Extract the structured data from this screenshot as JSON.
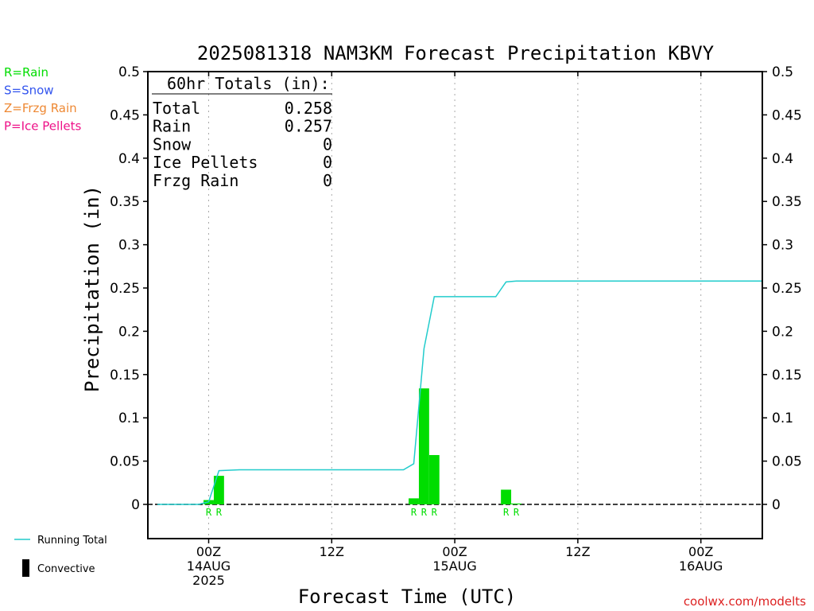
{
  "chart_data": {
    "type": "bar",
    "title": "2025081318 NAM3KM Forecast Precipitation KBVY",
    "xlabel": "Forecast Time (UTC)",
    "ylabel": "Precipitation (in)",
    "ylim": [
      -0.04,
      0.5
    ],
    "y_ticks": [
      0,
      0.05,
      0.1,
      0.15,
      0.2,
      0.25,
      0.3,
      0.35,
      0.4,
      0.45,
      0.5
    ],
    "y_tick_labels": [
      "0",
      "0.05",
      "0.1",
      "0.15",
      "0.2",
      "0.25",
      "0.3",
      "0.35",
      "0.4",
      "0.45",
      "0.5"
    ],
    "x_unit": "hours since 2025-08-13 18Z",
    "xlim": [
      0,
      60
    ],
    "x_ticks": [
      {
        "x": 6,
        "line1": "00Z",
        "line2": "14AUG",
        "line3": "2025"
      },
      {
        "x": 18,
        "line1": "12Z",
        "line2": "",
        "line3": ""
      },
      {
        "x": 30,
        "line1": "00Z",
        "line2": "15AUG",
        "line3": ""
      },
      {
        "x": 42,
        "line1": "12Z",
        "line2": "",
        "line3": ""
      },
      {
        "x": 54,
        "line1": "00Z",
        "line2": "16AUG",
        "line3": ""
      }
    ],
    "grid": "vertical dotted at tick marks",
    "bars": {
      "name": "Rain",
      "color": "#00dd00",
      "x": [
        6,
        7,
        26,
        27,
        28,
        35,
        36
      ],
      "values": [
        0.005,
        0.033,
        0.007,
        0.134,
        0.057,
        0.017,
        0.001
      ],
      "types": [
        "R",
        "R",
        "R",
        "R",
        "R",
        "R",
        "R"
      ]
    },
    "type_marker_x": [
      6,
      7,
      26,
      27,
      28,
      35,
      36
    ],
    "type_marker_labels": [
      "R",
      "R",
      "R",
      "R",
      "R",
      "R",
      "R"
    ],
    "running_total": {
      "name": "Running Total",
      "color": "#22cccc",
      "x": [
        1,
        5,
        6,
        7,
        9,
        25,
        26,
        27,
        28,
        30,
        33,
        34,
        35,
        36,
        60
      ],
      "y": [
        0,
        0,
        0.003,
        0.039,
        0.04,
        0.04,
        0.047,
        0.18,
        0.24,
        0.24,
        0.24,
        0.24,
        0.257,
        0.258,
        0.258
      ]
    },
    "totals_box": {
      "heading": "60hr Totals (in):",
      "rows": [
        {
          "label": "Total",
          "value": "0.258"
        },
        {
          "label": "Rain",
          "value": "0.257"
        },
        {
          "label": "Snow",
          "value": "0"
        },
        {
          "label": "Ice Pellets",
          "value": "0"
        },
        {
          "label": "Frzg Rain",
          "value": "0"
        }
      ]
    },
    "type_legend": [
      {
        "text": "R=Rain",
        "color": "#00dd00"
      },
      {
        "text": "S=Snow",
        "color": "#3355ee"
      },
      {
        "text": "Z=Frzg Rain",
        "color": "#ee8833"
      },
      {
        "text": "P=Ice Pellets",
        "color": "#ee1188"
      }
    ],
    "series_legend": [
      {
        "text": "Running Total",
        "color": "#22cccc",
        "kind": "line"
      },
      {
        "text": "Convective",
        "color": "#000000",
        "kind": "bar"
      }
    ],
    "credit": "coolwx.com/modelts",
    "credit_color": "#dd2222"
  }
}
